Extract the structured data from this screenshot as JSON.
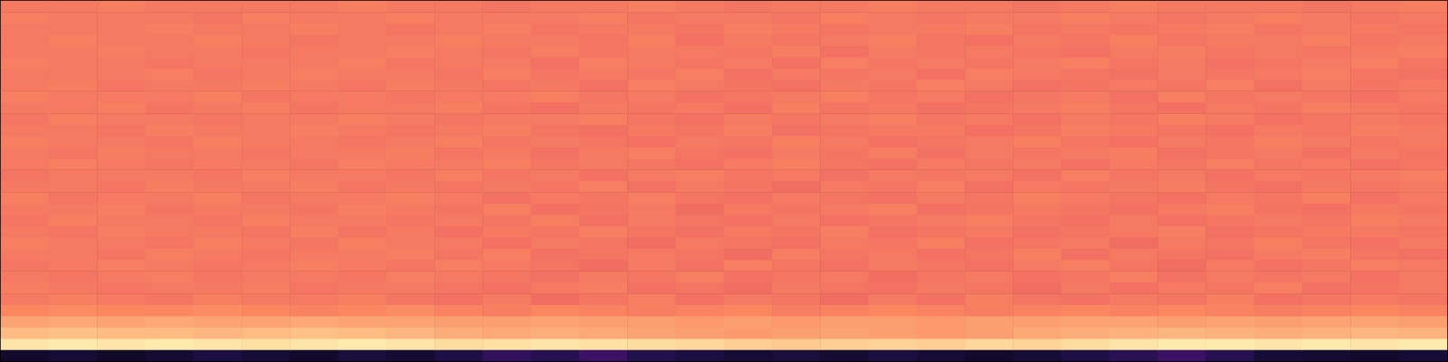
{
  "chart_data": {
    "type": "heatmap",
    "tick_labels": false,
    "color_range": [
      0,
      1
    ],
    "cells": [
      [
        0.08,
        0.1,
        0.07,
        0.09,
        0.12,
        0.1,
        0.08,
        0.11,
        0.09,
        0.13,
        0.18,
        0.15,
        0.2,
        0.14,
        0.12,
        0.1,
        0.11,
        0.09,
        0.12,
        0.1,
        0.08,
        0.1,
        0.13,
        0.16,
        0.2,
        0.15,
        0.1,
        0.09,
        0.08,
        0.1
      ],
      [
        0.95,
        0.96,
        0.95,
        0.96,
        0.95,
        0.94,
        0.95,
        0.96,
        0.95,
        0.93,
        0.94,
        0.95,
        0.94,
        0.93,
        0.92,
        0.9,
        0.89,
        0.9,
        0.91,
        0.9,
        0.92,
        0.91,
        0.93,
        0.95,
        0.96,
        0.96,
        0.95,
        0.96,
        0.95,
        0.96
      ],
      [
        0.86,
        0.87,
        0.86,
        0.86,
        0.85,
        0.86,
        0.87,
        0.86,
        0.85,
        0.83,
        0.82,
        0.83,
        0.82,
        0.81,
        0.8,
        0.79,
        0.8,
        0.81,
        0.8,
        0.79,
        0.8,
        0.82,
        0.83,
        0.84,
        0.85,
        0.84,
        0.83,
        0.84,
        0.85,
        0.84
      ],
      [
        0.81,
        0.82,
        0.81,
        0.82,
        0.81,
        0.81,
        0.82,
        0.81,
        0.81,
        0.8,
        0.8,
        0.81,
        0.8,
        0.8,
        0.79,
        0.8,
        0.79,
        0.8,
        0.8,
        0.79,
        0.8,
        0.8,
        0.81,
        0.81,
        0.8,
        0.81,
        0.8,
        0.81,
        0.81,
        0.8
      ],
      [
        0.75,
        0.76,
        0.75,
        0.75,
        0.76,
        0.75,
        0.74,
        0.75,
        0.76,
        0.74,
        0.73,
        0.75,
        0.74,
        0.73,
        0.74,
        0.75,
        0.73,
        0.74,
        0.75,
        0.74,
        0.73,
        0.74,
        0.75,
        0.74,
        0.75,
        0.74,
        0.73,
        0.74,
        0.75,
        0.74
      ],
      [
        0.72,
        0.73,
        0.72,
        0.71,
        0.73,
        0.72,
        0.72,
        0.73,
        0.71,
        0.7,
        0.72,
        0.69,
        0.71,
        0.73,
        0.7,
        0.72,
        0.71,
        0.69,
        0.72,
        0.7,
        0.73,
        0.71,
        0.7,
        0.72,
        0.71,
        0.73,
        0.7,
        0.71,
        0.72,
        0.71
      ],
      [
        0.73,
        0.72,
        0.71,
        0.72,
        0.72,
        0.73,
        0.71,
        0.72,
        0.72,
        0.71,
        0.7,
        0.72,
        0.73,
        0.7,
        0.71,
        0.69,
        0.72,
        0.71,
        0.7,
        0.72,
        0.71,
        0.69,
        0.72,
        0.7,
        0.72,
        0.71,
        0.73,
        0.7,
        0.71,
        0.72
      ],
      [
        0.72,
        0.71,
        0.72,
        0.73,
        0.71,
        0.72,
        0.72,
        0.71,
        0.73,
        0.72,
        0.71,
        0.7,
        0.72,
        0.71,
        0.73,
        0.7,
        0.71,
        0.72,
        0.69,
        0.71,
        0.72,
        0.7,
        0.71,
        0.73,
        0.7,
        0.72,
        0.71,
        0.72,
        0.7,
        0.72
      ],
      [
        0.71,
        0.72,
        0.73,
        0.72,
        0.71,
        0.72,
        0.73,
        0.72,
        0.71,
        0.73,
        0.72,
        0.71,
        0.69,
        0.72,
        0.7,
        0.73,
        0.71,
        0.7,
        0.72,
        0.71,
        0.7,
        0.72,
        0.73,
        0.71,
        0.69,
        0.72,
        0.7,
        0.71,
        0.73,
        0.72
      ],
      [
        0.72,
        0.72,
        0.71,
        0.73,
        0.72,
        0.71,
        0.72,
        0.72,
        0.73,
        0.71,
        0.73,
        0.7,
        0.71,
        0.72,
        0.71,
        0.69,
        0.73,
        0.71,
        0.72,
        0.7,
        0.71,
        0.73,
        0.7,
        0.72,
        0.71,
        0.7,
        0.72,
        0.73,
        0.71,
        0.7
      ],
      [
        0.73,
        0.72,
        0.72,
        0.71,
        0.73,
        0.72,
        0.71,
        0.73,
        0.72,
        0.72,
        0.7,
        0.72,
        0.71,
        0.69,
        0.72,
        0.71,
        0.7,
        0.72,
        0.71,
        0.73,
        0.7,
        0.71,
        0.72,
        0.69,
        0.72,
        0.71,
        0.73,
        0.71,
        0.7,
        0.72
      ],
      [
        0.72,
        0.71,
        0.73,
        0.72,
        0.72,
        0.71,
        0.73,
        0.71,
        0.72,
        0.7,
        0.72,
        0.71,
        0.73,
        0.71,
        0.7,
        0.72,
        0.71,
        0.73,
        0.7,
        0.71,
        0.72,
        0.7,
        0.71,
        0.72,
        0.73,
        0.7,
        0.71,
        0.72,
        0.72,
        0.71
      ],
      [
        0.71,
        0.73,
        0.72,
        0.72,
        0.71,
        0.73,
        0.72,
        0.72,
        0.71,
        0.72,
        0.71,
        0.73,
        0.7,
        0.72,
        0.71,
        0.7,
        0.72,
        0.7,
        0.71,
        0.72,
        0.73,
        0.71,
        0.7,
        0.72,
        0.7,
        0.71,
        0.72,
        0.71,
        0.73,
        0.72
      ],
      [
        0.72,
        0.72,
        0.73,
        0.71,
        0.72,
        0.72,
        0.71,
        0.73,
        0.72,
        0.71,
        0.73,
        0.7,
        0.71,
        0.72,
        0.69,
        0.72,
        0.71,
        0.72,
        0.73,
        0.7,
        0.71,
        0.72,
        0.71,
        0.7,
        0.72,
        0.73,
        0.71,
        0.7,
        0.72,
        0.71
      ],
      [
        0.73,
        0.71,
        0.72,
        0.72,
        0.73,
        0.71,
        0.72,
        0.72,
        0.73,
        0.72,
        0.7,
        0.72,
        0.71,
        0.73,
        0.71,
        0.7,
        0.72,
        0.71,
        0.7,
        0.72,
        0.71,
        0.73,
        0.72,
        0.71,
        0.7,
        0.72,
        0.71,
        0.73,
        0.7,
        0.72
      ],
      [
        0.72,
        0.72,
        0.71,
        0.73,
        0.72,
        0.72,
        0.73,
        0.71,
        0.72,
        0.71,
        0.72,
        0.71,
        0.73,
        0.7,
        0.72,
        0.71,
        0.69,
        0.72,
        0.71,
        0.73,
        0.7,
        0.72,
        0.71,
        0.72,
        0.73,
        0.71,
        0.7,
        0.72,
        0.71,
        0.72
      ],
      [
        0.71,
        0.72,
        0.72,
        0.72,
        0.71,
        0.73,
        0.72,
        0.72,
        0.71,
        0.73,
        0.71,
        0.72,
        0.7,
        0.72,
        0.73,
        0.71,
        0.72,
        0.7,
        0.72,
        0.71,
        0.72,
        0.7,
        0.73,
        0.71,
        0.72,
        0.7,
        0.72,
        0.71,
        0.72,
        0.73
      ],
      [
        0.72,
        0.73,
        0.72,
        0.71,
        0.72,
        0.72,
        0.71,
        0.73,
        0.72,
        0.72,
        0.73,
        0.71,
        0.72,
        0.71,
        0.7,
        0.72,
        0.73,
        0.71,
        0.7,
        0.72,
        0.71,
        0.72,
        0.7,
        0.72,
        0.71,
        0.73,
        0.71,
        0.72,
        0.7,
        0.71
      ],
      [
        0.72,
        0.71,
        0.73,
        0.72,
        0.72,
        0.71,
        0.72,
        0.72,
        0.73,
        0.71,
        0.72,
        0.7,
        0.72,
        0.73,
        0.71,
        0.7,
        0.72,
        0.71,
        0.73,
        0.7,
        0.72,
        0.71,
        0.72,
        0.73,
        0.7,
        0.71,
        0.72,
        0.7,
        0.72,
        0.71
      ],
      [
        0.73,
        0.72,
        0.72,
        0.71,
        0.73,
        0.72,
        0.72,
        0.71,
        0.72,
        0.73,
        0.71,
        0.72,
        0.71,
        0.7,
        0.72,
        0.71,
        0.73,
        0.72,
        0.7,
        0.71,
        0.72,
        0.73,
        0.71,
        0.7,
        0.72,
        0.71,
        0.73,
        0.72,
        0.71,
        0.72
      ],
      [
        0.72,
        0.72,
        0.71,
        0.73,
        0.72,
        0.72,
        0.73,
        0.72,
        0.71,
        0.72,
        0.73,
        0.71,
        0.7,
        0.72,
        0.71,
        0.73,
        0.7,
        0.71,
        0.72,
        0.72,
        0.7,
        0.71,
        0.73,
        0.72,
        0.71,
        0.7,
        0.72,
        0.71,
        0.73,
        0.72
      ],
      [
        0.71,
        0.73,
        0.72,
        0.72,
        0.71,
        0.72,
        0.72,
        0.73,
        0.72,
        0.71,
        0.72,
        0.72,
        0.73,
        0.71,
        0.7,
        0.72,
        0.71,
        0.72,
        0.73,
        0.71,
        0.72,
        0.7,
        0.72,
        0.71,
        0.73,
        0.72,
        0.7,
        0.71,
        0.72,
        0.71
      ],
      [
        0.72,
        0.72,
        0.73,
        0.71,
        0.72,
        0.73,
        0.71,
        0.72,
        0.72,
        0.73,
        0.71,
        0.7,
        0.72,
        0.71,
        0.72,
        0.7,
        0.73,
        0.71,
        0.72,
        0.7,
        0.71,
        0.72,
        0.73,
        0.71,
        0.7,
        0.72,
        0.71,
        0.73,
        0.72,
        0.71
      ],
      [
        0.73,
        0.72,
        0.72,
        0.72,
        0.73,
        0.71,
        0.72,
        0.72,
        0.71,
        0.72,
        0.72,
        0.73,
        0.71,
        0.72,
        0.7,
        0.71,
        0.72,
        0.73,
        0.71,
        0.72,
        0.7,
        0.71,
        0.72,
        0.7,
        0.73,
        0.71,
        0.72,
        0.71,
        0.7,
        0.72
      ],
      [
        0.72,
        0.73,
        0.71,
        0.72,
        0.72,
        0.73,
        0.72,
        0.71,
        0.73,
        0.72,
        0.71,
        0.72,
        0.7,
        0.73,
        0.72,
        0.71,
        0.7,
        0.72,
        0.71,
        0.73,
        0.72,
        0.7,
        0.71,
        0.72,
        0.71,
        0.73,
        0.7,
        0.72,
        0.71,
        0.72
      ],
      [
        0.72,
        0.72,
        0.72,
        0.73,
        0.71,
        0.72,
        0.73,
        0.72,
        0.72,
        0.71,
        0.73,
        0.71,
        0.72,
        0.71,
        0.73,
        0.7,
        0.72,
        0.71,
        0.72,
        0.7,
        0.73,
        0.72,
        0.71,
        0.7,
        0.72,
        0.71,
        0.72,
        0.73,
        0.71,
        0.7
      ],
      [
        0.73,
        0.72,
        0.72,
        0.71,
        0.72,
        0.72,
        0.72,
        0.73,
        0.71,
        0.72,
        0.72,
        0.7,
        0.73,
        0.72,
        0.71,
        0.72,
        0.7,
        0.73,
        0.71,
        0.72,
        0.71,
        0.72,
        0.73,
        0.71,
        0.72,
        0.7,
        0.71,
        0.72,
        0.73,
        0.71
      ],
      [
        0.72,
        0.72,
        0.73,
        0.72,
        0.72,
        0.71,
        0.72,
        0.72,
        0.73,
        0.72,
        0.71,
        0.73,
        0.71,
        0.72,
        0.72,
        0.71,
        0.73,
        0.7,
        0.72,
        0.71,
        0.72,
        0.71,
        0.7,
        0.72,
        0.73,
        0.71,
        0.72,
        0.71,
        0.72,
        0.73
      ],
      [
        0.72,
        0.73,
        0.72,
        0.72,
        0.73,
        0.72,
        0.71,
        0.72,
        0.72,
        0.73,
        0.72,
        0.72,
        0.71,
        0.73,
        0.7,
        0.72,
        0.71,
        0.72,
        0.73,
        0.71,
        0.7,
        0.72,
        0.71,
        0.73,
        0.71,
        0.72,
        0.72,
        0.73,
        0.71,
        0.72
      ],
      [
        0.72,
        0.72,
        0.72,
        0.73,
        0.72,
        0.72,
        0.73,
        0.72,
        0.71,
        0.72,
        0.73,
        0.71,
        0.72,
        0.72,
        0.71,
        0.73,
        0.72,
        0.71,
        0.72,
        0.72,
        0.73,
        0.71,
        0.72,
        0.71,
        0.72,
        0.73,
        0.71,
        0.72,
        0.72,
        0.71
      ],
      [
        0.73,
        0.72,
        0.72,
        0.72,
        0.71,
        0.73,
        0.72,
        0.72,
        0.73,
        0.72,
        0.72,
        0.72,
        0.73,
        0.71,
        0.72,
        0.72,
        0.71,
        0.73,
        0.72,
        0.71,
        0.72,
        0.72,
        0.73,
        0.72,
        0.71,
        0.72,
        0.73,
        0.72,
        0.71,
        0.72
      ],
      [
        0.72,
        0.72,
        0.73,
        0.72,
        0.72,
        0.72,
        0.72,
        0.73,
        0.72,
        0.72,
        0.71,
        0.72,
        0.72,
        0.73,
        0.72,
        0.71,
        0.72,
        0.72,
        0.73,
        0.72,
        0.72,
        0.71,
        0.72,
        0.73,
        0.72,
        0.72,
        0.72,
        0.71,
        0.72,
        0.73
      ]
    ]
  }
}
